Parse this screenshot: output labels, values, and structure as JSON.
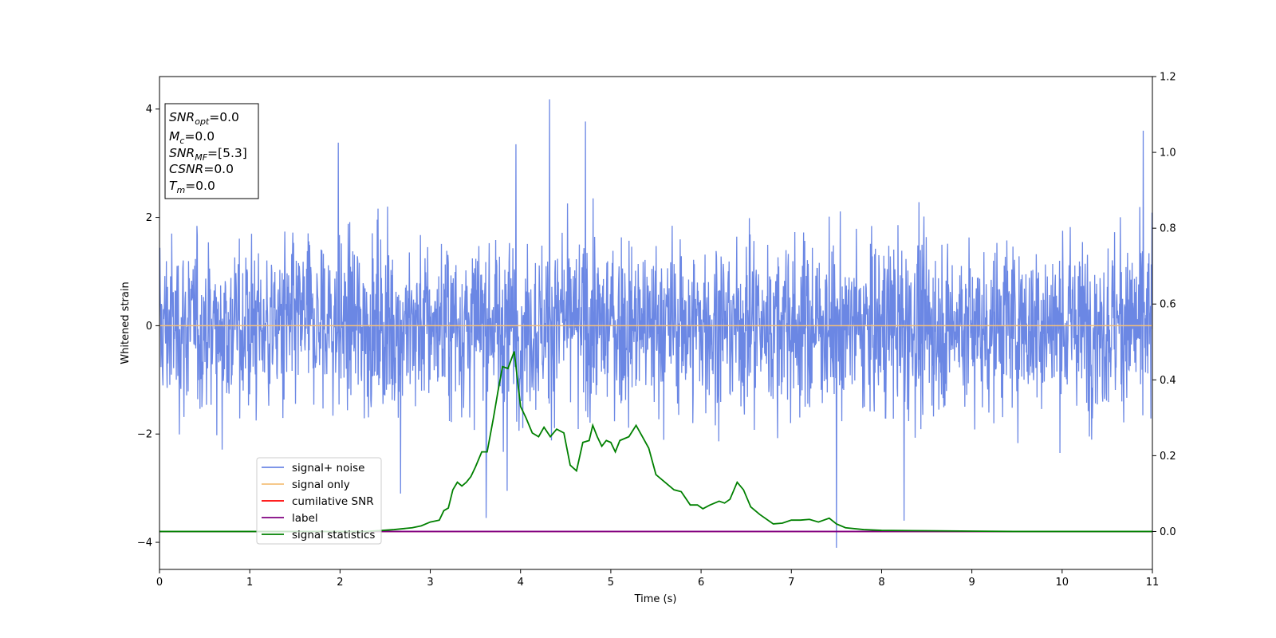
{
  "chart_data": {
    "type": "line",
    "xlabel": "Time (s)",
    "ylabel": "Whitened strain",
    "xlim": [
      0,
      11
    ],
    "ylim": [
      -4.5,
      4.6
    ],
    "y2lim": [
      -0.1,
      1.2
    ],
    "grid": false,
    "legend_position": "lower-left",
    "x_ticks": [
      "0",
      "1",
      "2",
      "3",
      "4",
      "5",
      "6",
      "7",
      "8",
      "9",
      "10",
      "11"
    ],
    "y_ticks": [
      "−4",
      "−2",
      "0",
      "2",
      "4"
    ],
    "y2_ticks": [
      "0.0",
      "0.2",
      "0.4",
      "0.6",
      "0.8",
      "1.0",
      "1.2"
    ],
    "info_box": [
      {
        "base": "SNR",
        "sub": "opt",
        "value": "=0.0"
      },
      {
        "base": "M",
        "sub": "c",
        "value": "=0.0"
      },
      {
        "base": "SNR",
        "sub": "MF",
        "value": "=[5.3]"
      },
      {
        "base": "CSNR",
        "sub": "",
        "value": "=0.0"
      },
      {
        "base": "T",
        "sub": "m",
        "value": "=0.0"
      }
    ],
    "series": [
      {
        "name": "signal+ noise",
        "color": "#6b87e4",
        "axis": "left",
        "kind": "noise",
        "typical_amplitude": 1.8,
        "peaks": [
          [
            4.32,
            4.18
          ],
          [
            4.72,
            3.77
          ],
          [
            3.95,
            3.35
          ],
          [
            10.9,
            3.6
          ],
          [
            1.98,
            3.38
          ],
          [
            7.5,
            -4.1
          ],
          [
            8.25,
            -3.6
          ],
          [
            3.62,
            -3.55
          ],
          [
            3.85,
            -3.05
          ],
          [
            2.67,
            -3.1
          ]
        ]
      },
      {
        "name": "signal only",
        "color": "#f5c07a",
        "axis": "left",
        "x": [
          0,
          11
        ],
        "y": [
          0,
          0
        ]
      },
      {
        "name": "cumilative SNR",
        "color": "#ff0000",
        "axis": "right",
        "x": [
          0,
          11
        ],
        "y": [
          0,
          0
        ]
      },
      {
        "name": "label",
        "color": "#800080",
        "axis": "right",
        "x": [
          0,
          11
        ],
        "y": [
          0,
          0
        ]
      },
      {
        "name": "signal statistics",
        "color": "#008000",
        "axis": "right",
        "x": [
          0,
          0.5,
          1.0,
          1.5,
          2.0,
          2.3,
          2.6,
          2.8,
          2.9,
          3.0,
          3.1,
          3.15,
          3.2,
          3.25,
          3.3,
          3.35,
          3.4,
          3.45,
          3.5,
          3.57,
          3.63,
          3.7,
          3.75,
          3.8,
          3.86,
          3.93,
          4.0,
          4.06,
          4.13,
          4.2,
          4.26,
          4.33,
          4.4,
          4.48,
          4.55,
          4.62,
          4.69,
          4.76,
          4.8,
          4.85,
          4.9,
          4.95,
          5.0,
          5.05,
          5.1,
          5.2,
          5.28,
          5.35,
          5.42,
          5.5,
          5.6,
          5.7,
          5.78,
          5.88,
          5.96,
          6.02,
          6.1,
          6.2,
          6.26,
          6.32,
          6.4,
          6.47,
          6.55,
          6.65,
          6.8,
          6.9,
          7.0,
          7.1,
          7.2,
          7.3,
          7.42,
          7.5,
          7.6,
          7.8,
          8.0,
          8.5,
          9.0,
          9.5,
          10.0,
          11.0
        ],
        "y": [
          0.0,
          0.0,
          0.0,
          0.0,
          0.0,
          0.0,
          0.005,
          0.01,
          0.015,
          0.025,
          0.03,
          0.055,
          0.062,
          0.11,
          0.13,
          0.12,
          0.13,
          0.145,
          0.17,
          0.21,
          0.21,
          0.3,
          0.37,
          0.435,
          0.43,
          0.475,
          0.33,
          0.3,
          0.26,
          0.25,
          0.275,
          0.25,
          0.27,
          0.26,
          0.175,
          0.16,
          0.235,
          0.24,
          0.28,
          0.25,
          0.225,
          0.24,
          0.235,
          0.21,
          0.24,
          0.25,
          0.28,
          0.25,
          0.22,
          0.15,
          0.13,
          0.11,
          0.105,
          0.07,
          0.07,
          0.06,
          0.07,
          0.08,
          0.075,
          0.085,
          0.13,
          0.11,
          0.065,
          0.045,
          0.02,
          0.022,
          0.03,
          0.03,
          0.032,
          0.025,
          0.035,
          0.02,
          0.01,
          0.005,
          0.003,
          0.002,
          0.001,
          0.0,
          0.0,
          0.0
        ]
      }
    ]
  }
}
